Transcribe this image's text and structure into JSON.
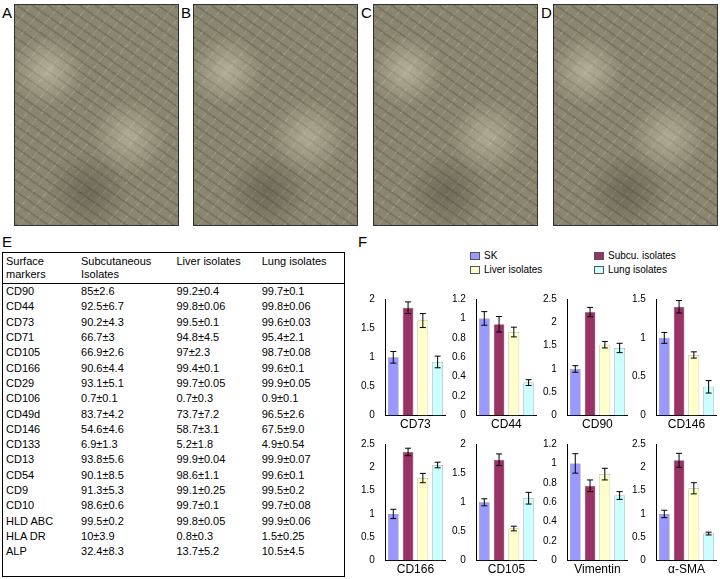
{
  "photos": [
    {
      "label": "A"
    },
    {
      "label": "B"
    },
    {
      "label": "C"
    },
    {
      "label": "D"
    }
  ],
  "table": {
    "label": "E",
    "header": [
      "Surface markers",
      "Subcutaneous Isolates",
      "Liver isolates",
      "Lung isolates"
    ],
    "rows": [
      [
        "CD90",
        "85±2.6",
        "99.2±0.4",
        "99.7±0.1"
      ],
      [
        "CD44",
        "92.5±6.7",
        "99.8±0.06",
        "99.8±0.06"
      ],
      [
        "CD73",
        "90.2±4.3",
        "99.5±0.1",
        "99.6±0.03"
      ],
      [
        "CD71",
        "66.7±3",
        "94.8±4.5",
        "95.4±2.1"
      ],
      [
        "CD105",
        "66.9±2.6",
        "97±2.3",
        "98.7±0.08"
      ],
      [
        "CD166",
        "90.6±4.4",
        "99.4±0.1",
        "99.6±0.1"
      ],
      [
        "CD29",
        "93.1±5.1",
        "99.7±0.05",
        "99.9±0.05"
      ],
      [
        "CD106",
        "0.7±0.1",
        "0.7±0.3",
        "0.9±0.1"
      ],
      [
        "CD49d",
        "83.7±4.2",
        "73.7±7.2",
        "96.5±2.6"
      ],
      [
        "CD146",
        "54.6±4.6",
        "58.7±3.1",
        "67.5±9.0"
      ],
      [
        "CD133",
        "6.9±1.3",
        "5.2±1.8",
        "4.9±0.54"
      ],
      [
        "CD13",
        "93.8±5.6",
        "99.9±0.04",
        "99.9±0.07"
      ],
      [
        "CD54",
        "90.1±8.5",
        "98.6±1.1",
        "99.6±0.1"
      ],
      [
        "CD9",
        "91.3±5.3",
        "99.1±0.25",
        "99.5±0.2"
      ],
      [
        "CD10",
        "98.6±0.6",
        "99.7±0.1",
        "99.7±0.08"
      ],
      [
        "HLD ABC",
        "99.5±0.2",
        "99.8±0.05",
        "99.9±0.06"
      ],
      [
        "HLA DR",
        "10±3.9",
        "0.8±0.3",
        "1.5±0.25"
      ],
      [
        "ALP",
        "32.4±8.3",
        "13.7±5.2",
        "10.5±4.5"
      ]
    ]
  },
  "panel_label": "F",
  "chart_data": [
    {
      "type": "bar",
      "x_label": "CD73",
      "categories": [
        "SK",
        "Subcu. isolates",
        "Liver isolates",
        "Lung isolates"
      ],
      "values": [
        1.0,
        1.85,
        1.63,
        0.92
      ],
      "errors": [
        0.1,
        0.1,
        0.12,
        0.1
      ],
      "colors": [
        "#9999ff",
        "#993366",
        "#ffffcc",
        "#ccffff"
      ],
      "ylim": [
        0,
        2
      ],
      "yticks": [
        0,
        0.5,
        1,
        1.5,
        2
      ],
      "grid": false,
      "tick_labels": "y"
    },
    {
      "type": "bar",
      "x_label": "CD44",
      "categories": [
        "SK",
        "Subcu. isolates",
        "Liver isolates",
        "Lung isolates"
      ],
      "values": [
        1.0,
        0.94,
        0.86,
        0.34
      ],
      "errors": [
        0.07,
        0.08,
        0.05,
        0.03
      ],
      "colors": [
        "#9999ff",
        "#993366",
        "#ffffcc",
        "#ccffff"
      ],
      "ylim": [
        0,
        1.2
      ],
      "yticks": [
        0,
        0.2,
        0.4,
        0.6,
        0.8,
        1,
        1.2
      ],
      "grid": false,
      "tick_labels": "y"
    },
    {
      "type": "bar",
      "x_label": "CD90",
      "categories": [
        "SK",
        "Subcu. isolates",
        "Liver isolates",
        "Lung isolates"
      ],
      "values": [
        1.0,
        2.22,
        1.52,
        1.45
      ],
      "errors": [
        0.07,
        0.1,
        0.07,
        0.1
      ],
      "colors": [
        "#9999ff",
        "#993366",
        "#ffffcc",
        "#ccffff"
      ],
      "ylim": [
        0,
        2.5
      ],
      "yticks": [
        0,
        0.5,
        1,
        1.5,
        2,
        2.5
      ],
      "grid": false,
      "tick_labels": "y"
    },
    {
      "type": "bar",
      "x_label": "CD146",
      "categories": [
        "SK",
        "Subcu. isolates",
        "Liver isolates",
        "Lung isolates"
      ],
      "values": [
        1.0,
        1.4,
        0.78,
        0.37
      ],
      "errors": [
        0.07,
        0.08,
        0.04,
        0.08
      ],
      "colors": [
        "#9999ff",
        "#993366",
        "#ffffcc",
        "#ccffff"
      ],
      "ylim": [
        0,
        1.5
      ],
      "yticks": [
        0,
        0.5,
        1,
        1.5
      ],
      "grid": false,
      "tick_labels": "y",
      "legend": "top-right"
    },
    {
      "type": "bar",
      "x_label": "CD166",
      "categories": [
        "SK",
        "Subcu. isolates",
        "Liver isolates",
        "Lung isolates"
      ],
      "values": [
        1.0,
        2.33,
        1.77,
        2.05
      ],
      "errors": [
        0.1,
        0.08,
        0.1,
        0.06
      ],
      "colors": [
        "#9999ff",
        "#993366",
        "#ffffcc",
        "#ccffff"
      ],
      "ylim": [
        0,
        2.5
      ],
      "yticks": [
        0,
        0.5,
        1,
        1.5,
        2,
        2.5
      ],
      "grid": false,
      "tick_labels": "y"
    },
    {
      "type": "bar",
      "x_label": "CD105",
      "categories": [
        "SK",
        "Subcu. isolates",
        "Liver isolates",
        "Lung isolates"
      ],
      "values": [
        1.0,
        1.73,
        0.55,
        1.07
      ],
      "errors": [
        0.06,
        0.1,
        0.04,
        0.1
      ],
      "colors": [
        "#9999ff",
        "#993366",
        "#ffffcc",
        "#ccffff"
      ],
      "ylim": [
        0,
        2
      ],
      "yticks": [
        0,
        0.5,
        1,
        1.5,
        2
      ],
      "grid": false,
      "tick_labels": "y"
    },
    {
      "type": "bar",
      "x_label": "Vimentin",
      "categories": [
        "SK",
        "Subcu. isolates",
        "Liver isolates",
        "Lung isolates"
      ],
      "values": [
        1.0,
        0.77,
        0.89,
        0.67
      ],
      "errors": [
        0.1,
        0.06,
        0.06,
        0.04
      ],
      "colors": [
        "#9999ff",
        "#993366",
        "#ffffcc",
        "#ccffff"
      ],
      "ylim": [
        0,
        1.2
      ],
      "yticks": [
        0,
        0.2,
        0.4,
        0.6,
        0.8,
        1,
        1.2
      ],
      "grid": false,
      "tick_labels": "y"
    },
    {
      "type": "bar",
      "x_label": "α-SMA",
      "categories": [
        "SK",
        "Subcu. isolates",
        "Liver isolates",
        "Lung isolates"
      ],
      "values": [
        1.0,
        2.15,
        1.55,
        0.58
      ],
      "errors": [
        0.08,
        0.15,
        0.12,
        0.03
      ],
      "colors": [
        "#9999ff",
        "#993366",
        "#ffffcc",
        "#ccffff"
      ],
      "ylim": [
        0,
        2.5
      ],
      "yticks": [
        0,
        0.5,
        1,
        1.5,
        2,
        2.5
      ],
      "grid": false,
      "tick_labels": "y"
    }
  ]
}
